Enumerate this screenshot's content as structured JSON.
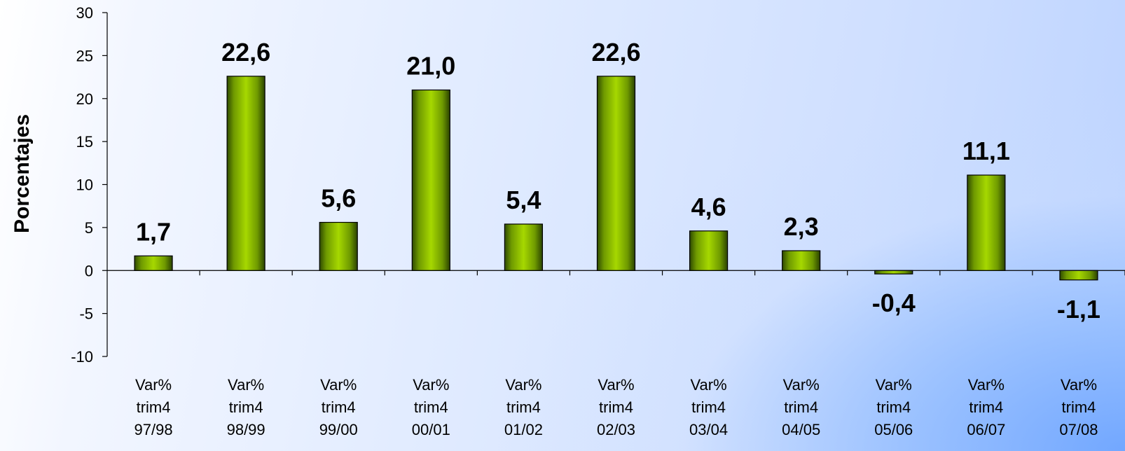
{
  "chart_data": {
    "type": "bar",
    "title": "",
    "xlabel": "",
    "ylabel": "Porcentajes",
    "ylim": [
      -10,
      30
    ],
    "yticks": [
      30,
      25,
      20,
      15,
      10,
      5,
      0,
      -5,
      -10
    ],
    "categories": [
      [
        "Var%",
        "trim4",
        "97/98"
      ],
      [
        "Var%",
        "trim4",
        "98/99"
      ],
      [
        "Var%",
        "trim4",
        "99/00"
      ],
      [
        "Var%",
        "trim4",
        "00/01"
      ],
      [
        "Var%",
        "trim4",
        "01/02"
      ],
      [
        "Var%",
        "trim4",
        "02/03"
      ],
      [
        "Var%",
        "trim4",
        "03/04"
      ],
      [
        "Var%",
        "trim4",
        "04/05"
      ],
      [
        "Var%",
        "trim4",
        "05/06"
      ],
      [
        "Var%",
        "trim4",
        "06/07"
      ],
      [
        "Var%",
        "trim4",
        "07/08"
      ]
    ],
    "values": [
      1.7,
      22.6,
      5.6,
      21.0,
      5.4,
      22.6,
      4.6,
      2.3,
      -0.4,
      11.1,
      -1.1
    ],
    "data_labels": [
      "1,7",
      "22,6",
      "5,6",
      "21,0",
      "5,4",
      "22,6",
      "4,6",
      "2,3",
      "-0,4",
      "11,1",
      "-1,1"
    ],
    "bar_color": "#99cc00",
    "grid": false,
    "legend": "none"
  }
}
